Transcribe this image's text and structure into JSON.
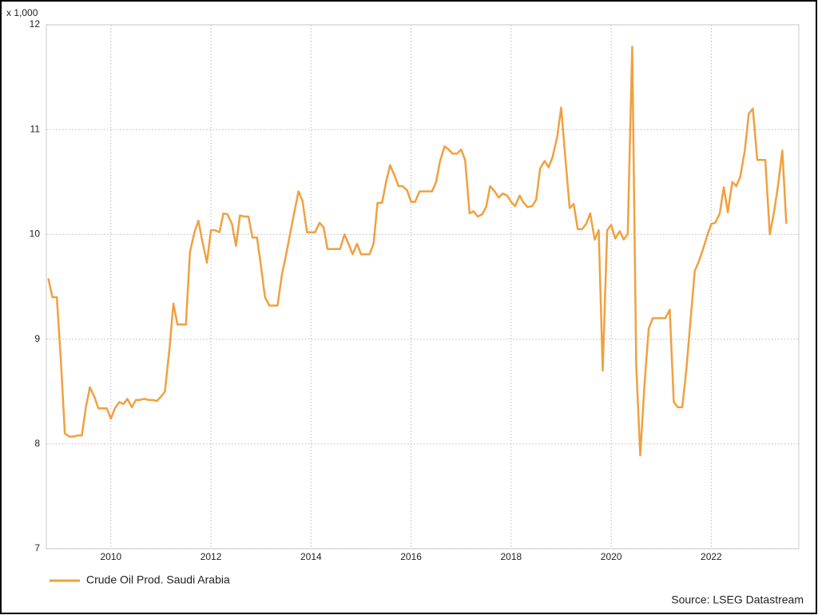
{
  "chart_data": {
    "type": "line",
    "y_unit_label": "x 1,000",
    "source": "Source: LSEG Datastream",
    "x": [
      2008.75,
      2008.83,
      2008.92,
      2009.0,
      2009.08,
      2009.17,
      2009.25,
      2009.33,
      2009.42,
      2009.5,
      2009.58,
      2009.67,
      2009.75,
      2009.83,
      2009.92,
      2010.0,
      2010.08,
      2010.17,
      2010.25,
      2010.33,
      2010.42,
      2010.5,
      2010.58,
      2010.67,
      2010.75,
      2010.83,
      2010.92,
      2011.0,
      2011.08,
      2011.17,
      2011.25,
      2011.33,
      2011.42,
      2011.5,
      2011.58,
      2011.67,
      2011.75,
      2011.83,
      2011.92,
      2012.0,
      2012.08,
      2012.17,
      2012.25,
      2012.33,
      2012.42,
      2012.5,
      2012.58,
      2012.67,
      2012.75,
      2012.83,
      2012.92,
      2013.0,
      2013.08,
      2013.17,
      2013.25,
      2013.33,
      2013.42,
      2013.5,
      2013.58,
      2013.67,
      2013.75,
      2013.83,
      2013.92,
      2014.0,
      2014.08,
      2014.17,
      2014.25,
      2014.33,
      2014.42,
      2014.5,
      2014.58,
      2014.67,
      2014.75,
      2014.83,
      2014.92,
      2015.0,
      2015.08,
      2015.17,
      2015.25,
      2015.33,
      2015.42,
      2015.5,
      2015.58,
      2015.67,
      2015.75,
      2015.83,
      2015.92,
      2016.0,
      2016.08,
      2016.17,
      2016.25,
      2016.33,
      2016.42,
      2016.5,
      2016.58,
      2016.67,
      2016.75,
      2016.83,
      2016.92,
      2017.0,
      2017.08,
      2017.17,
      2017.25,
      2017.33,
      2017.42,
      2017.5,
      2017.58,
      2017.67,
      2017.75,
      2017.83,
      2017.92,
      2018.0,
      2018.08,
      2018.17,
      2018.25,
      2018.33,
      2018.42,
      2018.5,
      2018.58,
      2018.67,
      2018.75,
      2018.83,
      2018.92,
      2019.0,
      2019.08,
      2019.17,
      2019.25,
      2019.33,
      2019.42,
      2019.5,
      2019.58,
      2019.67,
      2019.75,
      2019.83,
      2019.92,
      2020.0,
      2020.08,
      2020.17,
      2020.25,
      2020.33,
      2020.42,
      2020.5,
      2020.58,
      2020.67,
      2020.75,
      2020.83,
      2020.92,
      2021.0,
      2021.08,
      2021.17,
      2021.25,
      2021.33,
      2021.42,
      2021.5,
      2021.58,
      2021.67,
      2021.75,
      2021.83,
      2021.92,
      2022.0,
      2022.08,
      2022.17,
      2022.25,
      2022.33,
      2022.42,
      2022.5,
      2022.58,
      2022.67,
      2022.75,
      2022.83,
      2022.92,
      2023.0,
      2023.08,
      2023.17,
      2023.25,
      2023.33,
      2023.42,
      2023.5
    ],
    "series": [
      {
        "name": "Crude Oil Prod. Saudi Arabia",
        "color": "#f0a040",
        "values": [
          9.58,
          9.4,
          9.4,
          8.8,
          8.1,
          8.07,
          8.07,
          8.08,
          8.08,
          8.35,
          8.54,
          8.45,
          8.34,
          8.34,
          8.34,
          8.24,
          8.34,
          8.4,
          8.38,
          8.43,
          8.35,
          8.42,
          8.42,
          8.43,
          8.42,
          8.42,
          8.41,
          8.45,
          8.5,
          8.9,
          9.34,
          9.14,
          9.14,
          9.14,
          9.83,
          10.02,
          10.13,
          9.93,
          9.73,
          10.04,
          10.04,
          10.02,
          10.2,
          10.19,
          10.1,
          9.89,
          10.18,
          10.17,
          10.17,
          9.97,
          9.97,
          9.7,
          9.4,
          9.32,
          9.32,
          9.32,
          9.62,
          9.8,
          10.0,
          10.22,
          10.41,
          10.32,
          10.02,
          10.02,
          10.02,
          10.11,
          10.07,
          9.86,
          9.86,
          9.86,
          9.86,
          10.0,
          9.91,
          9.81,
          9.91,
          9.81,
          9.81,
          9.81,
          9.91,
          10.3,
          10.3,
          10.5,
          10.66,
          10.56,
          10.46,
          10.46,
          10.42,
          10.31,
          10.31,
          10.41,
          10.41,
          10.41,
          10.41,
          10.5,
          10.7,
          10.84,
          10.81,
          10.77,
          10.77,
          10.81,
          10.71,
          10.2,
          10.22,
          10.17,
          10.19,
          10.26,
          10.46,
          10.41,
          10.35,
          10.39,
          10.37,
          10.31,
          10.27,
          10.37,
          10.3,
          10.26,
          10.27,
          10.33,
          10.63,
          10.7,
          10.64,
          10.74,
          10.93,
          11.21,
          10.75,
          10.25,
          10.29,
          10.05,
          10.05,
          10.1,
          10.2,
          9.95,
          10.04,
          8.7,
          10.04,
          10.09,
          9.96,
          10.03,
          9.95,
          10.0,
          11.79,
          8.75,
          7.89,
          8.6,
          9.1,
          9.2,
          9.2,
          9.2,
          9.2,
          9.28,
          8.4,
          8.35,
          8.35,
          8.7,
          9.15,
          9.65,
          9.74,
          9.85,
          9.99,
          10.1,
          10.11,
          10.2,
          10.45,
          10.21,
          10.5,
          10.46,
          10.55,
          10.8,
          11.15,
          11.2,
          10.71,
          10.71,
          10.71,
          10.0,
          10.2,
          10.45,
          10.8,
          10.1
        ]
      }
    ],
    "xlim": [
      2008.71,
      2023.75
    ],
    "xticks": [
      2010,
      2012,
      2014,
      2016,
      2018,
      2020,
      2022
    ],
    "ylim": [
      7,
      12
    ],
    "yticks": [
      7,
      8,
      9,
      10,
      11,
      12
    ],
    "grid": true,
    "legend": "bottom-left"
  }
}
